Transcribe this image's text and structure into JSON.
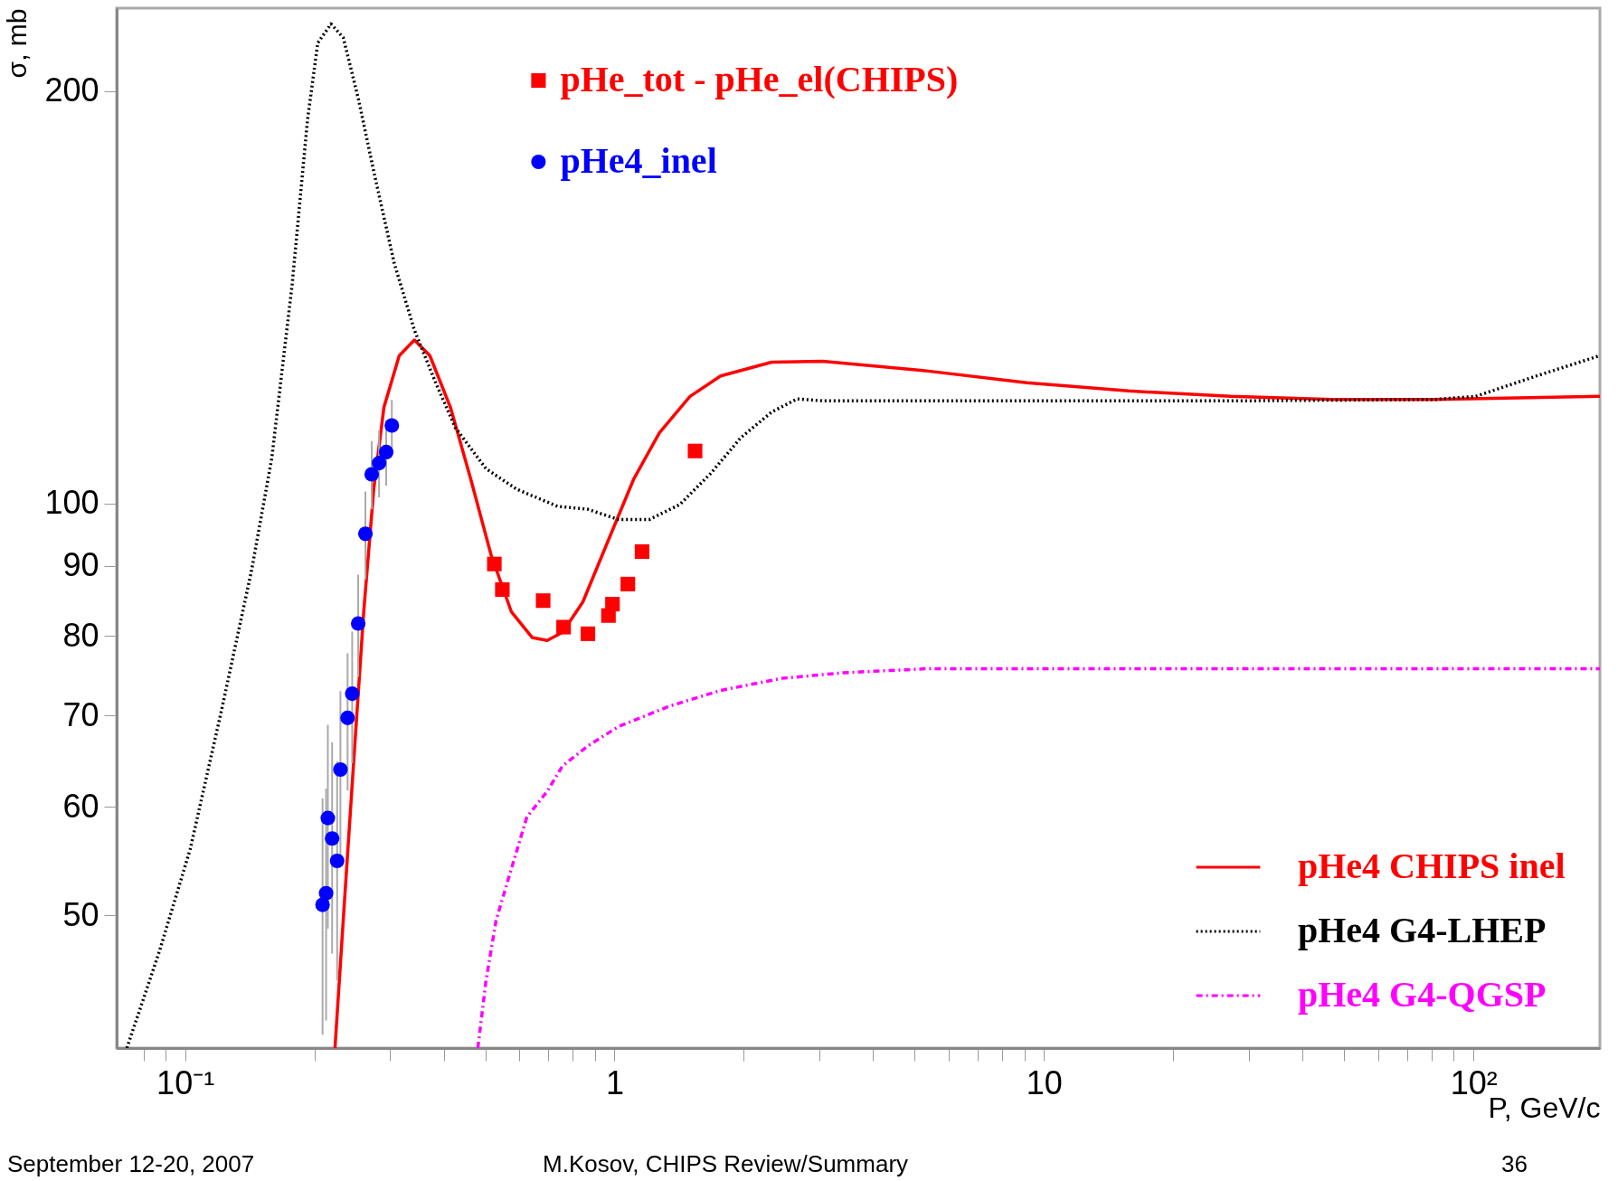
{
  "chart_data": {
    "type": "line",
    "xlabel": "P, GeV/c",
    "ylabel": "σ, mb",
    "log": "xy",
    "xlim": [
      0.0693,
      197
    ],
    "ylim": [
      40,
      230
    ],
    "xticks": [
      {
        "value": 0.08,
        "label": null
      },
      {
        "value": 0.09,
        "label": null
      },
      {
        "value": 0.1,
        "label": "10⁻¹"
      },
      {
        "value": 0.2,
        "label": null
      },
      {
        "value": 0.3,
        "label": null
      },
      {
        "value": 0.4,
        "label": null
      },
      {
        "value": 0.5,
        "label": null
      },
      {
        "value": 0.6,
        "label": null
      },
      {
        "value": 0.7,
        "label": null
      },
      {
        "value": 0.8,
        "label": null
      },
      {
        "value": 0.9,
        "label": null
      },
      1,
      {
        "value": 2,
        "label": null
      },
      {
        "value": 3,
        "label": null
      },
      {
        "value": 4,
        "label": null
      },
      {
        "value": 5,
        "label": null
      },
      {
        "value": 6,
        "label": null
      },
      {
        "value": 7,
        "label": null
      },
      {
        "value": 8,
        "label": null
      },
      {
        "value": 9,
        "label": null
      },
      10,
      {
        "value": 20,
        "label": null
      },
      {
        "value": 30,
        "label": null
      },
      {
        "value": 40,
        "label": null
      },
      {
        "value": 50,
        "label": null
      },
      {
        "value": 60,
        "label": null
      },
      {
        "value": 70,
        "label": null
      },
      {
        "value": 80,
        "label": null
      },
      {
        "value": 90,
        "label": null
      },
      {
        "value": 100,
        "label": "10²"
      }
    ],
    "yticks": [
      50,
      60,
      70,
      80,
      90,
      100,
      200
    ],
    "legend": "bottom right",
    "grid": false,
    "series": [
      {
        "name": "pHe_tot - pHe_el(CHIPS)",
        "type": "scatter",
        "marker": "square",
        "color": "#ff0000",
        "x": [
          0.525,
          0.548,
          0.682,
          0.761,
          0.867,
          0.968,
          0.989,
          1.074,
          1.159,
          1.54
        ],
        "values": [
          90.3,
          86.5,
          84.9,
          81.2,
          80.3,
          82.8,
          84.4,
          87.3,
          92.2,
          109.2
        ]
      },
      {
        "name": "pHe4_inel",
        "type": "scatter",
        "marker": "circle",
        "color": "#0000ff",
        "x": [
          0.209,
          0.213,
          0.215,
          0.22,
          0.226,
          0.23,
          0.239,
          0.245,
          0.253,
          0.263,
          0.272,
          0.283,
          0.294,
          0.303
        ],
        "values": [
          50.9,
          51.9,
          58.9,
          56.9,
          54.8,
          63.9,
          69.7,
          72.6,
          81.7,
          95.0,
          105,
          107,
          109,
          114
        ],
        "errors": [
          10,
          10,
          10,
          10,
          10,
          9,
          8,
          8,
          7,
          7,
          6,
          6,
          6,
          5
        ]
      },
      {
        "name": "pHe4 CHIPS inel",
        "type": "line",
        "line_style": "solid",
        "color": "#ff0000",
        "x": [
          0.2234,
          0.2335,
          0.2466,
          0.2606,
          0.275,
          0.2904,
          0.3153,
          0.342,
          0.3715,
          0.415,
          0.4624,
          0.5163,
          0.5754,
          0.6427,
          0.6969,
          0.7568,
          0.8437,
          0.9677,
          1.109,
          1.272,
          1.499,
          1.766,
          2.322,
          3.053,
          5.27,
          9.12,
          15.74,
          27.2,
          47.0,
          81.3,
          197
        ],
        "values": [
          40,
          49.6,
          64.3,
          83.3,
          102.4,
          117.5,
          128.2,
          131.6,
          128.2,
          117.5,
          104.2,
          91.6,
          83.3,
          79.8,
          79.4,
          80.5,
          84.7,
          94.0,
          104.2,
          112.6,
          119.7,
          123.9,
          126.8,
          127.0,
          125.0,
          122.5,
          120.8,
          119.7,
          119.1,
          119.1,
          119.7
        ]
      },
      {
        "name": "pHe4 G4-LHEP",
        "type": "line",
        "line_style": "dotted",
        "color": "#000000",
        "x": [
          0.0732,
          0.0872,
          0.1028,
          0.1211,
          0.1427,
          0.1592,
          0.1776,
          0.1928,
          0.2037,
          0.2187,
          0.2335,
          0.2535,
          0.275,
          0.307,
          0.342,
          0.382,
          0.4257,
          0.502,
          0.5916,
          0.7362,
          0.867,
          1.022,
          1.204,
          1.419,
          1.672,
          1.97,
          2.322,
          2.662,
          3.053,
          9.12,
          27.2,
          81.3,
          101.1,
          140.3,
          197
        ],
        "values": [
          40,
          47.1,
          55.9,
          70.2,
          89.2,
          107.9,
          144.6,
          190.6,
          216.9,
          224.0,
          218.9,
          197.2,
          174.8,
          149.7,
          133.8,
          122.8,
          113.6,
          106.0,
          102.4,
          99.5,
          99.0,
          97.3,
          97.3,
          99.8,
          105.1,
          111.7,
          116.6,
          119.2,
          118.8,
          118.8,
          118.8,
          119.1,
          119.7,
          123.9,
          128.2
        ]
      },
      {
        "name": "pHe4 G4-QGSP",
        "type": "line",
        "line_style": "dashed",
        "color": "#ff00ff",
        "x": [
          0.4805,
          0.502,
          0.53,
          0.5754,
          0.625,
          0.6969,
          0.7568,
          0.867,
          1.022,
          1.343,
          1.766,
          2.453,
          3.405,
          5.27,
          9.12,
          197
        ],
        "values": [
          40,
          44.8,
          49.6,
          54.1,
          59.0,
          61.6,
          64.3,
          66.5,
          68.7,
          71.1,
          73.0,
          74.5,
          75.2,
          75.7,
          75.7,
          75.7
        ]
      }
    ],
    "annotations": [
      "September 12-20, 2007",
      "M.Kosov, CHIPS Review/Summary",
      "36"
    ]
  }
}
